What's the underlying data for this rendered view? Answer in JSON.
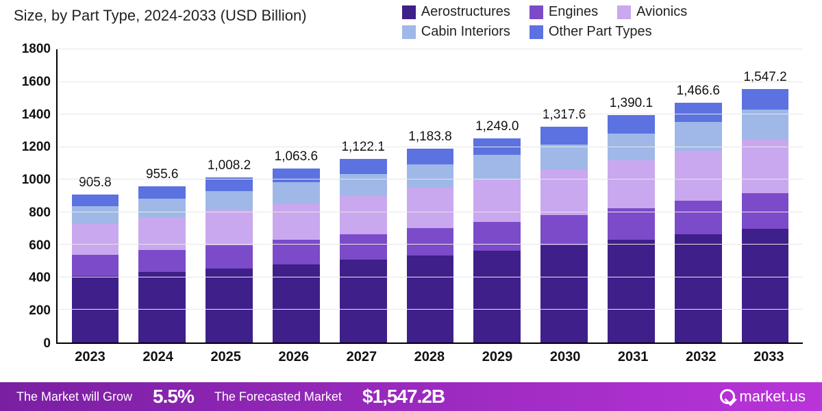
{
  "subtitle": "Size, by Part Type, 2024-2033 (USD Billion)",
  "legend": [
    {
      "label": "Aerostructures",
      "color": "#3f1f8a"
    },
    {
      "label": "Engines",
      "color": "#7b4bc9"
    },
    {
      "label": "Avionics",
      "color": "#c9a8ef"
    },
    {
      "label": "Cabin Interiors",
      "color": "#9fb8e8"
    },
    {
      "label": "Other Part Types",
      "color": "#5b72e0"
    }
  ],
  "chart": {
    "type": "stacked-bar",
    "ylim": [
      0,
      1800
    ],
    "ytick_step": 200,
    "yticks": [
      0,
      200,
      400,
      600,
      800,
      1000,
      1200,
      1400,
      1600,
      1800
    ],
    "grid_color": "#e6e6e6",
    "axis_color": "#000000",
    "background_color": "#ffffff",
    "bar_width_ratio": 0.78,
    "label_fontsize": 19,
    "tick_fontsize": 20,
    "categories": [
      "2023",
      "2024",
      "2025",
      "2026",
      "2027",
      "2028",
      "2029",
      "2030",
      "2031",
      "2032",
      "2033"
    ],
    "totals": [
      905.8,
      955.6,
      1008.2,
      1063.6,
      1122.1,
      1183.8,
      1249.0,
      1317.6,
      1390.1,
      1466.6,
      1547.2
    ],
    "total_labels": [
      "905.8",
      "955.6",
      "1,008.2",
      "1,063.6",
      "1,122.1",
      "1,183.8",
      "1,249.0",
      "1,317.6",
      "1,390.1",
      "1,466.6",
      "1,547.2"
    ],
    "series": [
      {
        "name": "Aerostructures",
        "color": "#3f1f8a",
        "values": [
          408,
          430,
          454,
          479,
          505,
          533,
          562,
          593,
          626,
          660,
          696
        ]
      },
      {
        "name": "Engines",
        "color": "#7b4bc9",
        "values": [
          127,
          134,
          141,
          149,
          157,
          166,
          175,
          184,
          195,
          205,
          217
        ]
      },
      {
        "name": "Avionics",
        "color": "#c9a8ef",
        "values": [
          190,
          201,
          212,
          223,
          236,
          249,
          262,
          277,
          292,
          308,
          325
        ]
      },
      {
        "name": "Cabin Interiors",
        "color": "#9fb8e8",
        "values": [
          108,
          114,
          120,
          127,
          134,
          141,
          149,
          157,
          166,
          175,
          184
        ]
      },
      {
        "name": "Other Part Types",
        "color": "#5b72e0",
        "values": [
          72.8,
          76.6,
          81.2,
          85.6,
          90.1,
          94.8,
          101.0,
          106.6,
          111.1,
          118.6,
          125.2
        ]
      }
    ]
  },
  "footer": {
    "grow_label": "The Market will Grow",
    "grow_value": "5.5%",
    "forecast_label": "The Forecasted Market",
    "forecast_value": "$1,547.2B",
    "brand": "market.us",
    "bg_gradient_from": "#7a1fa2",
    "bg_gradient_to": "#b934d9"
  }
}
